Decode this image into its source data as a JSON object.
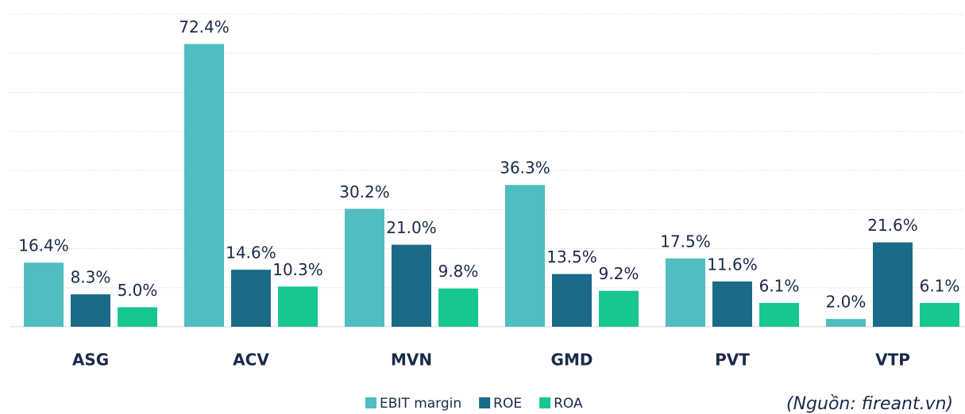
{
  "chart_data": {
    "type": "bar",
    "categories": [
      "ASG",
      "ACV",
      "MVN",
      "GMD",
      "PVT",
      "VTP"
    ],
    "series": [
      {
        "name": "EBIT margin",
        "color": "#4fbdc1",
        "values": [
          16.4,
          72.4,
          30.2,
          36.3,
          17.5,
          2.0
        ],
        "value_labels": [
          "16.4%",
          "72.4%",
          "30.2%",
          "36.3%",
          "17.5%",
          "2.0%"
        ]
      },
      {
        "name": "ROE",
        "color": "#1b6a87",
        "values": [
          8.3,
          14.6,
          21.0,
          13.5,
          11.6,
          21.6
        ],
        "value_labels": [
          "8.3%",
          "14.6%",
          "21.0%",
          "13.5%",
          "11.6%",
          "21.6%"
        ]
      },
      {
        "name": "ROA",
        "color": "#18c690",
        "values": [
          5.0,
          10.3,
          9.8,
          9.2,
          6.1,
          6.1
        ],
        "value_labels": [
          "5.0%",
          "10.3%",
          "9.8%",
          "9.2%",
          "6.1%",
          "6.1%"
        ]
      }
    ],
    "ylim": [
      0,
      80
    ],
    "yticks": [
      0,
      10,
      20,
      30,
      40,
      50,
      60,
      70,
      80
    ],
    "grid": true,
    "legend": "bottom",
    "source": "(Nguồn: fireant.vn)"
  }
}
